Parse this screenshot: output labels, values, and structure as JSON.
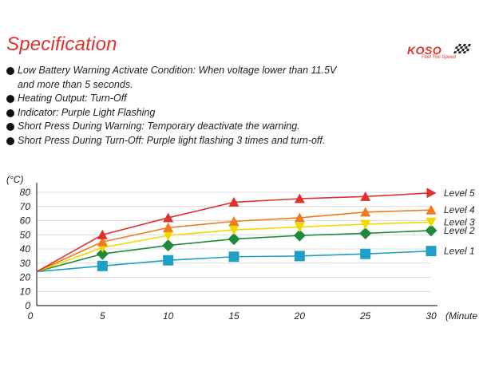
{
  "header": {
    "title": "Specification",
    "logo_text": "KOSO",
    "logo_tagline": "Feel The Speed"
  },
  "bullets": [
    {
      "line1": "Low Battery Warning Activate Condition: When voltage lower than 11.5V",
      "line2": "and more than 5 seconds."
    },
    {
      "line1": "Heating Output: Turn-Off",
      "line2": ""
    },
    {
      "line1": "Indicator: Purple Light Flashing",
      "line2": ""
    },
    {
      "line1": "Short Press During Warning: Temporary deactivate the warning.",
      "line2": ""
    },
    {
      "line1": "Short Press During Turn-Off: Purple light flashing 3 times and turn-off.",
      "line2": ""
    }
  ],
  "chart_data": {
    "type": "line",
    "ylabel": "(°C)",
    "xlabel": "(Minute",
    "x": [
      0,
      5,
      10,
      15,
      20,
      25,
      30
    ],
    "xlim": [
      0,
      30
    ],
    "ylim": [
      0,
      80
    ],
    "yticks": [
      0,
      10,
      20,
      30,
      40,
      50,
      60,
      70,
      80
    ],
    "grid": "horizontal",
    "legend": "right, at line ends with arrowheads",
    "series": [
      {
        "name": "Level 1",
        "values": [
          24,
          28,
          32,
          34.5,
          35,
          36.5,
          38.5
        ],
        "color": "#1e9fc4",
        "marker": "square"
      },
      {
        "name": "Level 2",
        "values": [
          24,
          36.5,
          42.5,
          47,
          49.5,
          51,
          53
        ],
        "color": "#1f8a3a",
        "marker": "diamond"
      },
      {
        "name": "Level 3",
        "values": [
          24,
          41,
          49.5,
          53.5,
          55.5,
          57.5,
          59
        ],
        "color": "#f2d800",
        "marker": "triangle-down"
      },
      {
        "name": "Level 4",
        "values": [
          24,
          45,
          55,
          59.5,
          62,
          66,
          67.5
        ],
        "color": "#ef7b1e",
        "marker": "triangle-up"
      },
      {
        "name": "Level 5",
        "values": [
          24,
          50,
          62,
          73,
          75.5,
          77,
          79.5
        ],
        "color": "#e0312d",
        "marker": "triangle-right"
      }
    ]
  }
}
